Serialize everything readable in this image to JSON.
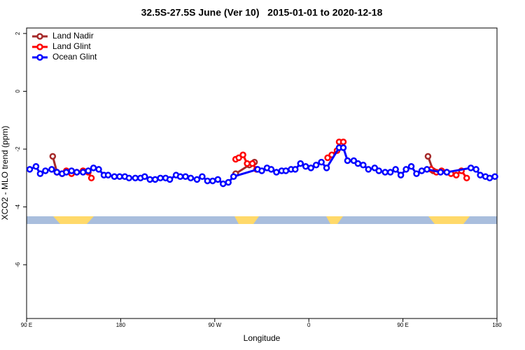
{
  "chart_data": {
    "type": "line",
    "title": "32.5S-27.5S June (Ver 10)   2015-01-01 to 2020-12-18",
    "xlabel": "Longitude",
    "ylabel": "XCO2 - MLO trend (ppm)",
    "xlim": [
      90,
      540
    ],
    "xticks": [
      {
        "value": 90,
        "label": "90 E"
      },
      180,
      {
        "value": 270,
        "label": "90 W"
      },
      {
        "value": 360,
        "label": "0"
      },
      {
        "value": 450,
        "label": "90 E"
      },
      {
        "value": 540,
        "label": "180"
      }
    ],
    "ylim": [
      -7.86,
      2.19
    ],
    "yticks": [
      -6,
      -4,
      -2,
      0,
      2
    ],
    "legend_position": "top-left",
    "series": [
      {
        "name": "Land Nadir",
        "color": "#a52a2a",
        "x": [
          115,
          119,
          null,
          290,
          303,
          308,
          null,
          474,
          479
        ],
        "values": [
          -2.25,
          -2.8,
          null,
          -2.85,
          -2.55,
          -2.45,
          null,
          -2.25,
          -2.75
        ]
      },
      {
        "name": "Land Glint",
        "color": "#ff0000",
        "x": [
          119,
          124,
          128,
          133,
          138,
          144,
          149,
          152,
          null,
          290,
          293,
          297,
          301,
          306,
          310,
          null,
          378,
          382,
          387,
          389,
          393,
          null,
          477,
          482,
          487,
          492,
          496,
          501,
          506,
          511
        ],
        "values": [
          -2.8,
          -2.85,
          -2.75,
          -2.85,
          -2.8,
          -2.75,
          -2.8,
          -3.0,
          null,
          -2.35,
          -2.3,
          -2.2,
          -2.5,
          -2.5,
          -2.7,
          null,
          -2.3,
          -2.2,
          -2.05,
          -1.75,
          -1.75,
          null,
          -2.7,
          -2.8,
          -2.75,
          -2.8,
          -2.85,
          -2.9,
          -2.75,
          -3.0
        ]
      },
      {
        "name": "Ocean Glint",
        "color": "#0000ff",
        "x": [
          93,
          99,
          103,
          108,
          114,
          119,
          124,
          128,
          133,
          138,
          144,
          149,
          154,
          159,
          164,
          168,
          174,
          179,
          184,
          188,
          194,
          199,
          203,
          208,
          213,
          218,
          223,
          227,
          233,
          237,
          242,
          247,
          253,
          258,
          263,
          268,
          273,
          278,
          283,
          288,
          311,
          315,
          320,
          324,
          329,
          334,
          338,
          343,
          347,
          352,
          357,
          362,
          367,
          372,
          377,
          389,
          393,
          397,
          403,
          407,
          412,
          417,
          423,
          427,
          433,
          438,
          443,
          448,
          453,
          458,
          463,
          468,
          473,
          486,
          492,
          515,
          520,
          524,
          529,
          533,
          538
        ],
        "values": [
          -2.7,
          -2.6,
          -2.85,
          -2.75,
          -2.7,
          -2.8,
          -2.85,
          -2.8,
          -2.75,
          -2.8,
          -2.8,
          -2.75,
          -2.65,
          -2.7,
          -2.9,
          -2.9,
          -2.95,
          -2.95,
          -2.95,
          -3.0,
          -3.0,
          -3.0,
          -2.95,
          -3.05,
          -3.05,
          -3.0,
          -3.0,
          -3.05,
          -2.9,
          -2.95,
          -2.95,
          -3.0,
          -3.05,
          -2.95,
          -3.1,
          -3.1,
          -3.05,
          -3.2,
          -3.15,
          -2.95,
          -2.7,
          -2.75,
          -2.65,
          -2.7,
          -2.8,
          -2.75,
          -2.75,
          -2.7,
          -2.7,
          -2.5,
          -2.6,
          -2.65,
          -2.55,
          -2.45,
          -2.65,
          -1.95,
          -1.95,
          -2.4,
          -2.4,
          -2.5,
          -2.55,
          -2.7,
          -2.65,
          -2.75,
          -2.8,
          -2.8,
          -2.7,
          -2.9,
          -2.7,
          -2.6,
          -2.85,
          -2.75,
          -2.7,
          -2.8,
          -2.8,
          -2.65,
          -2.7,
          -2.9,
          -2.95,
          -3.0,
          -2.95
        ]
      }
    ]
  }
}
